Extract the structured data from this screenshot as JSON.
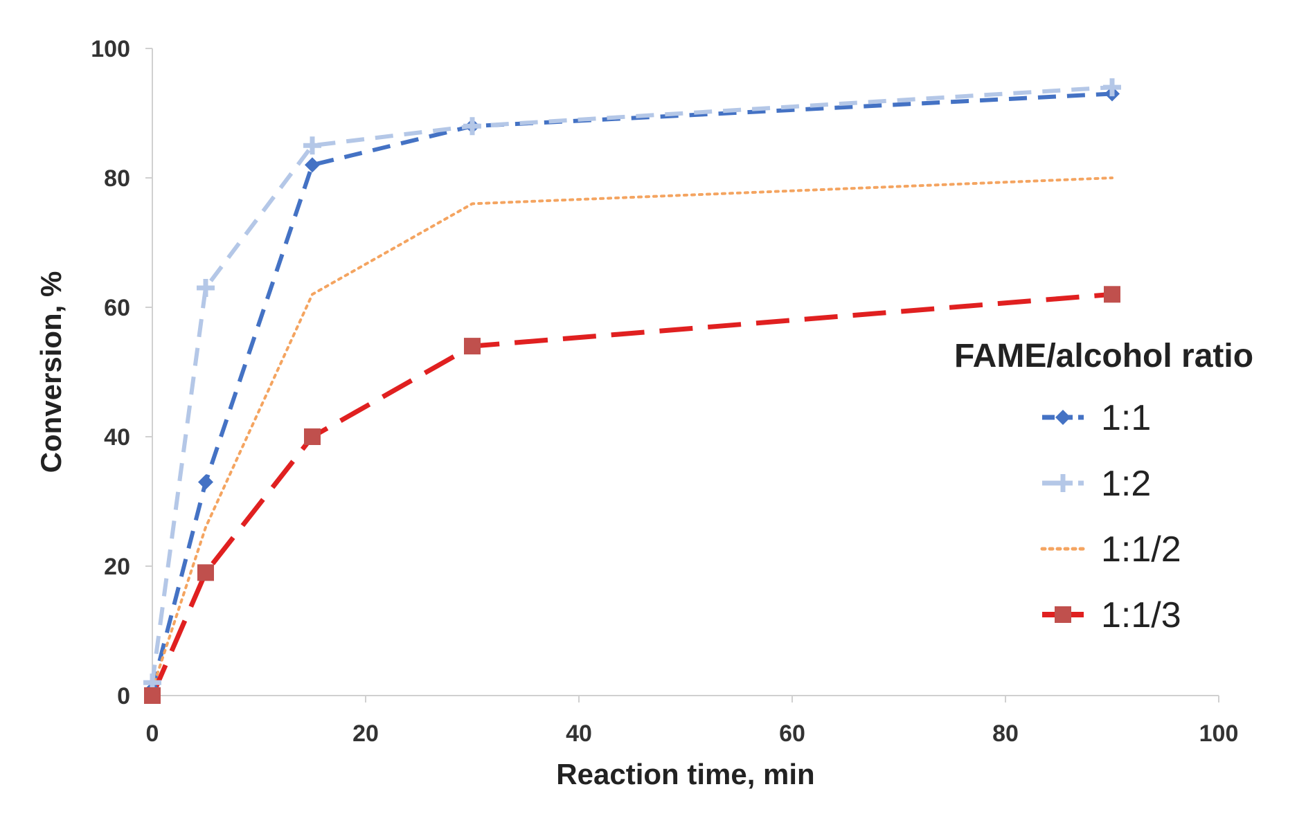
{
  "chart_data": {
    "type": "line",
    "title": "",
    "xlabel": "Reaction time, min",
    "ylabel": "Conversion, %",
    "xlim": [
      0,
      100
    ],
    "ylim": [
      0,
      100
    ],
    "xticks": [
      "0",
      "20",
      "40",
      "60",
      "80",
      "100"
    ],
    "yticks": [
      "0",
      "20",
      "40",
      "60",
      "80",
      "100"
    ],
    "grid": false,
    "legend_title": "FAME/alcohol ratio",
    "legend_position": "right",
    "series": [
      {
        "name": "1:1",
        "x": [
          0,
          5,
          15,
          30,
          90
        ],
        "values": [
          1,
          33,
          82,
          88,
          93
        ],
        "color": "#4472c4",
        "marker": "diamond",
        "line_style": "dash"
      },
      {
        "name": "1:2",
        "x": [
          0,
          5,
          15,
          30,
          90
        ],
        "values": [
          2,
          63,
          85,
          88,
          94
        ],
        "color": "#b4c7e7",
        "marker": "plus",
        "line_style": "dash"
      },
      {
        "name": "1:1/2",
        "x": [
          0,
          5,
          15,
          30,
          90
        ],
        "values": [
          1,
          26,
          62,
          76,
          80
        ],
        "color": "#f4a460",
        "marker": "none",
        "line_style": "dot"
      },
      {
        "name": "1:1/3",
        "x": [
          0,
          5,
          15,
          30,
          90
        ],
        "values": [
          0,
          19,
          40,
          54,
          62
        ],
        "color": "#e02020",
        "marker_color": "#c0504d",
        "marker": "square",
        "line_style": "longdash"
      }
    ]
  }
}
